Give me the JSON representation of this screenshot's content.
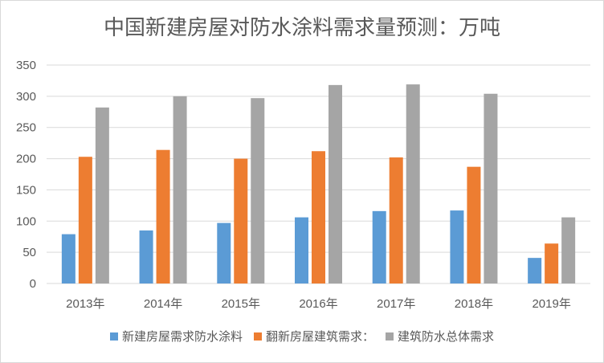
{
  "chart_data": {
    "type": "bar",
    "title": "中国新建房屋对防水涂料需求量预测：万吨",
    "categories": [
      "2013年",
      "2014年",
      "2015年",
      "2016年",
      "2017年",
      "2018年",
      "2019年"
    ],
    "series": [
      {
        "name": "新建房屋需求防水涂料",
        "color": "#5B9BD5",
        "values": [
          79,
          85,
          97,
          106,
          116,
          117,
          41
        ]
      },
      {
        "name": "翻新房屋建筑需求：",
        "color": "#ED7D31",
        "values": [
          203,
          214,
          200,
          212,
          202,
          187,
          64
        ]
      },
      {
        "name": "建筑防水总体需求",
        "color": "#A5A5A5",
        "values": [
          282,
          300,
          297,
          318,
          319,
          304,
          106
        ]
      }
    ],
    "ylim": [
      0,
      350
    ],
    "yticks": [
      "0",
      "50",
      "100",
      "150",
      "200",
      "250",
      "300",
      "350"
    ],
    "grid": true,
    "legend": "bottom"
  }
}
